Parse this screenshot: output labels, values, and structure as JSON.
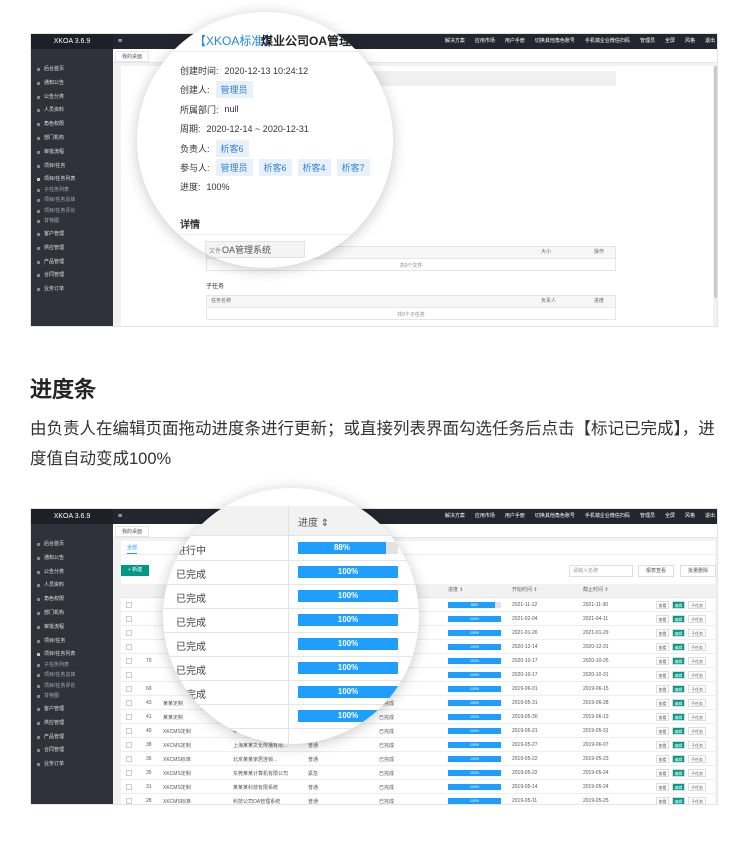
{
  "app": {
    "name": "XKOA 3.6.9",
    "menu_icon": "≡",
    "nav": [
      "解决方案",
      "应用市场",
      "用户手册",
      "切换其他角色账号",
      "手机端企业微信扫码",
      "管理员",
      "全屏",
      "风格",
      "退出"
    ],
    "tab": "我的桌面",
    "sidebar": {
      "main_top": [
        "后台首页",
        "通知公告",
        "公告分类",
        "人员资料",
        "角色权限",
        "部门机构",
        "审批流程",
        "项目/任务"
      ],
      "sub": [
        "项目/任务列表",
        "子任务列表",
        "项目/任务总体",
        "项目/任务评论",
        "甘特图"
      ],
      "main_bottom": [
        "客户管理",
        "供应管理",
        "产品管理",
        "合同管理",
        "业务订单"
      ]
    }
  },
  "screenshot_1": {
    "magnifier": {
      "tag": "【XKOA标准】",
      "title": "煤业公司OA管理系",
      "fields": [
        {
          "label": "创建时间:",
          "value": "2020-12-13 10:24:12"
        },
        {
          "label": "创建人:",
          "tags": [
            "管理员"
          ]
        },
        {
          "label": "所属部门:",
          "value": "null"
        },
        {
          "label": "周期:",
          "value": "2020-12-14 ~ 2020-12-31"
        },
        {
          "label": "负责人:",
          "tags": [
            "析客6"
          ]
        },
        {
          "label": "参与人:",
          "tags": [
            "管理员",
            "析客6",
            "析客4",
            "析客7"
          ]
        },
        {
          "label": "进度:",
          "value": "100%"
        }
      ],
      "details_heading": "详情",
      "file_label": "文件",
      "file_name": "OA管理系统"
    },
    "files_table": {
      "columns": [
        "大小",
        "操作"
      ],
      "empty": "共0个文件"
    },
    "subtasks": {
      "heading": "子任务",
      "columns": [
        "任务名称",
        "负责人",
        "进度"
      ],
      "empty": "共0个子任务"
    }
  },
  "section": {
    "heading": "进度条",
    "text": "由负责人在编辑页面拖动进度条进行更新；或直接列表界面勾选任务后点击【标记已完成】，进度值自动变成100%"
  },
  "screenshot_2": {
    "tab": "全部",
    "new_button": "+ 新建",
    "search_placeholder": "请输入名称",
    "buttons": [
      "报表查看",
      "批量删除"
    ],
    "table": {
      "columns": [
        "进度 ⇕",
        "开始时间 ⇕",
        "截止时间 ⇕"
      ],
      "row_actions": [
        "查看",
        "编辑",
        "子任务"
      ],
      "rows": [
        {
          "progress": 88,
          "progress_label": "88%",
          "start": "2021-11-12",
          "end": "2021-11-30"
        },
        {
          "progress": 100,
          "progress_label": "100%",
          "start": "2021-02-04",
          "end": "2021-04-11"
        },
        {
          "progress": 100,
          "progress_label": "100%",
          "start": "2021-01-26",
          "end": "2021-01-29"
        },
        {
          "progress": 100,
          "progress_label": "100%",
          "start": "2020-12-14",
          "end": "2020-12-31"
        },
        {
          "id": "70",
          "status": "已完成",
          "progress": 100,
          "progress_label": "100%",
          "start": "2020-10-17",
          "end": "2020-10-25"
        },
        {
          "status": "已完成",
          "progress": 100,
          "progress_label": "100%",
          "start": "2020-10-17",
          "end": "2020-10-31"
        },
        {
          "id": "69",
          "status": "已完成",
          "progress": 100,
          "progress_label": "100%",
          "start": "2019-06-01",
          "end": "2019-06-15"
        },
        {
          "id": "43",
          "name": "某某定制",
          "status": "已完成",
          "progress": 100,
          "progress_label": "100%",
          "start": "2019-05-31",
          "end": "2019-06-28"
        },
        {
          "id": "41",
          "name": "某某定制",
          "status": "已完成",
          "progress": 100,
          "progress_label": "100%",
          "start": "2019-05-30",
          "end": "2019-06-13"
        },
        {
          "id": "40",
          "name": "XKCMS定制",
          "client": "中山市某某五金制品有限",
          "level": "普通",
          "status": "已完成",
          "progress": 100,
          "progress_label": "100%",
          "start": "2019-05-21",
          "end": "2019-05-31"
        },
        {
          "id": "38",
          "name": "XKCMS定制",
          "client": "上海某某文化传播有限...",
          "level": "普通",
          "status": "已完成",
          "progress": 100,
          "progress_label": "100%",
          "start": "2019-05-27",
          "end": "2019-06-07"
        },
        {
          "id": "36",
          "name": "XKCMS标准",
          "client": "北京某某家居连锁...",
          "level": "普通",
          "status": "已完成",
          "progress": 100,
          "progress_label": "100%",
          "start": "2019-05-22",
          "end": "2019-05-23"
        },
        {
          "id": "35",
          "name": "XKCMS定制",
          "client": "东莞某某计算机有限公司",
          "level": "紧急",
          "status": "已完成",
          "progress": 100,
          "progress_label": "100%",
          "start": "2019-05-22",
          "end": "2019-05-24"
        },
        {
          "id": "31",
          "name": "XKCMS定制",
          "client": "某某某科技有限系统",
          "level": "普通",
          "status": "已完成",
          "progress": 100,
          "progress_label": "100%",
          "start": "2019-05-14",
          "end": "2019-05-24"
        },
        {
          "id": "28",
          "name": "XKCMS标准",
          "client": "科技公司OA管理系统",
          "level": "普通",
          "status": "已完成",
          "progress": 100,
          "progress_label": "100%",
          "start": "2019-05-11",
          "end": "2019-05-25"
        }
      ]
    },
    "magnifier": {
      "columns": [
        "状态",
        "进度 ⇕"
      ],
      "rows": [
        {
          "status": "进行中",
          "progress": 88,
          "progress_label": "88%"
        },
        {
          "status": "已完成",
          "progress": 100,
          "progress_label": "100%"
        },
        {
          "status": "已完成",
          "progress": 100,
          "progress_label": "100%"
        },
        {
          "status": "已完成",
          "progress": 100,
          "progress_label": "100%"
        },
        {
          "status": "已完成",
          "progress": 100,
          "progress_label": "100%"
        },
        {
          "status": "已完成",
          "progress": 100,
          "progress_label": "100%"
        },
        {
          "status": "已完成",
          "progress": 100,
          "progress_label": "100%"
        },
        {
          "status": "已完成",
          "progress": 100,
          "progress_label": "100%"
        }
      ]
    }
  }
}
